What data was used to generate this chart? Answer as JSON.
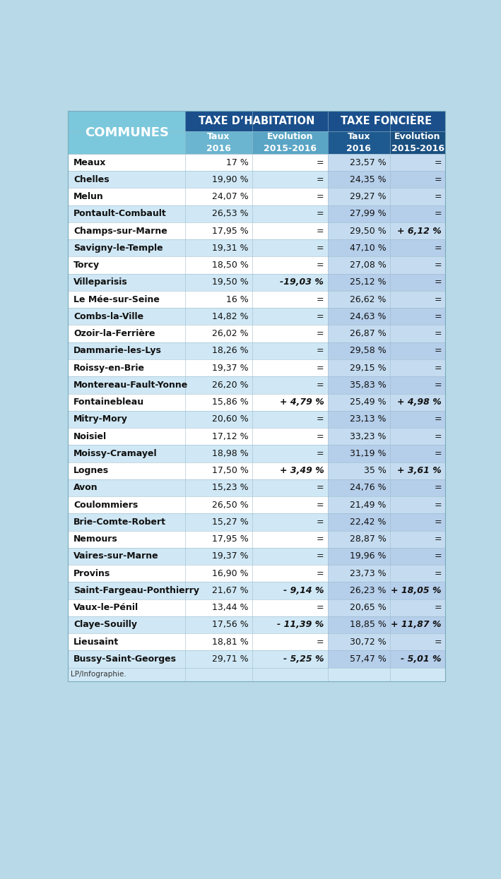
{
  "communes": [
    "Meaux",
    "Chelles",
    "Melun",
    "Pontault-Combault",
    "Champs-sur-Marne",
    "Savigny-le-Temple",
    "Torcy",
    "Villeparisis",
    "Le Mée-sur-Seine",
    "Combs-la-Ville",
    "Ozoir-la-Ferrière",
    "Dammarie-les-Lys",
    "Roissy-en-Brie",
    "Montereau-Fault-Yonne",
    "Fontainebleau",
    "Mitry-Mory",
    "Noisiel",
    "Moissy-Cramayel",
    "Lognes",
    "Avon",
    "Coulommiers",
    "Brie-Comte-Robert",
    "Nemours",
    "Vaires-sur-Marne",
    "Provins",
    "Saint-Fargeau-Ponthierry",
    "Vaux-le-Pénil",
    "Claye-Souilly",
    "Lieusaint",
    "Bussy-Saint-Georges"
  ],
  "taux_hab": [
    "17 %",
    "19,90 %",
    "24,07 %",
    "26,53 %",
    "17,95 %",
    "19,31 %",
    "18,50 %",
    "19,50 %",
    "16 %",
    "14,82 %",
    "26,02 %",
    "18,26 %",
    "19,37 %",
    "26,20 %",
    "15,86 %",
    "20,60 %",
    "17,12 %",
    "18,98 %",
    "17,50 %",
    "15,23 %",
    "26,50 %",
    "15,27 %",
    "17,95 %",
    "19,37 %",
    "16,90 %",
    "21,67 %",
    "13,44 %",
    "17,56 %",
    "18,81 %",
    "29,71 %"
  ],
  "evol_hab": [
    "=",
    "=",
    "=",
    "=",
    "=",
    "=",
    "=",
    "-19,03 %",
    "=",
    "=",
    "=",
    "=",
    "=",
    "=",
    "+ 4,79 %",
    "=",
    "=",
    "=",
    "+ 3,49 %",
    "=",
    "=",
    "=",
    "=",
    "=",
    "=",
    "- 9,14 %",
    "=",
    "- 11,39 %",
    "=",
    "- 5,25 %"
  ],
  "taux_fonc": [
    "23,57 %",
    "24,35 %",
    "29,27 %",
    "27,99 %",
    "29,50 %",
    "47,10 %",
    "27,08 %",
    "25,12 %",
    "26,62 %",
    "24,63 %",
    "26,87 %",
    "29,58 %",
    "29,15 %",
    "35,83 %",
    "25,49 %",
    "23,13 %",
    "33,23 %",
    "31,19 %",
    "35 %",
    "24,76 %",
    "21,49 %",
    "22,42 %",
    "28,87 %",
    "19,96 %",
    "23,73 %",
    "26,23 %",
    "20,65 %",
    "18,85 %",
    "30,72 %",
    "57,47 %"
  ],
  "evol_fonc": [
    "=",
    "=",
    "=",
    "=",
    "+ 6,12 %",
    "=",
    "=",
    "=",
    "=",
    "=",
    "=",
    "=",
    "=",
    "=",
    "+ 4,98 %",
    "=",
    "=",
    "=",
    "+ 3,61 %",
    "=",
    "=",
    "=",
    "=",
    "=",
    "=",
    "+ 18,05 %",
    "=",
    "+ 11,87 %",
    "=",
    "- 5,01 %"
  ],
  "bg_color": "#B8D9E8",
  "header1_communes_color": "#7BC8DC",
  "header1_hab_color": "#1A4F8C",
  "header1_fonc_color": "#1A4F8C",
  "header2_taux_hab_color": "#6BB5D0",
  "header2_evol_hab_color": "#5AA5C5",
  "header2_taux_fonc_color": "#1E5A90",
  "header2_evol_fonc_color": "#1A5080",
  "row_odd_left": "#FFFFFF",
  "row_even_left": "#D0E8F5",
  "row_odd_right_taux": "#C5DCF0",
  "row_even_right_taux": "#B5CEEA",
  "row_odd_right_evol": "#C5DCF0",
  "row_even_right_evol": "#B5CEEA",
  "footer_text": "LP/Infographie.",
  "title_communes": "COMMUNES",
  "title_hab": "TAXE D’HABITATION",
  "title_fonc": "TAXE FONCIÈRE",
  "sub_taux": "Taux\n2016",
  "sub_evol": "Evolution\n2015-2016",
  "fig_width": 7.09,
  "fig_height": 12.45,
  "dpi": 100
}
